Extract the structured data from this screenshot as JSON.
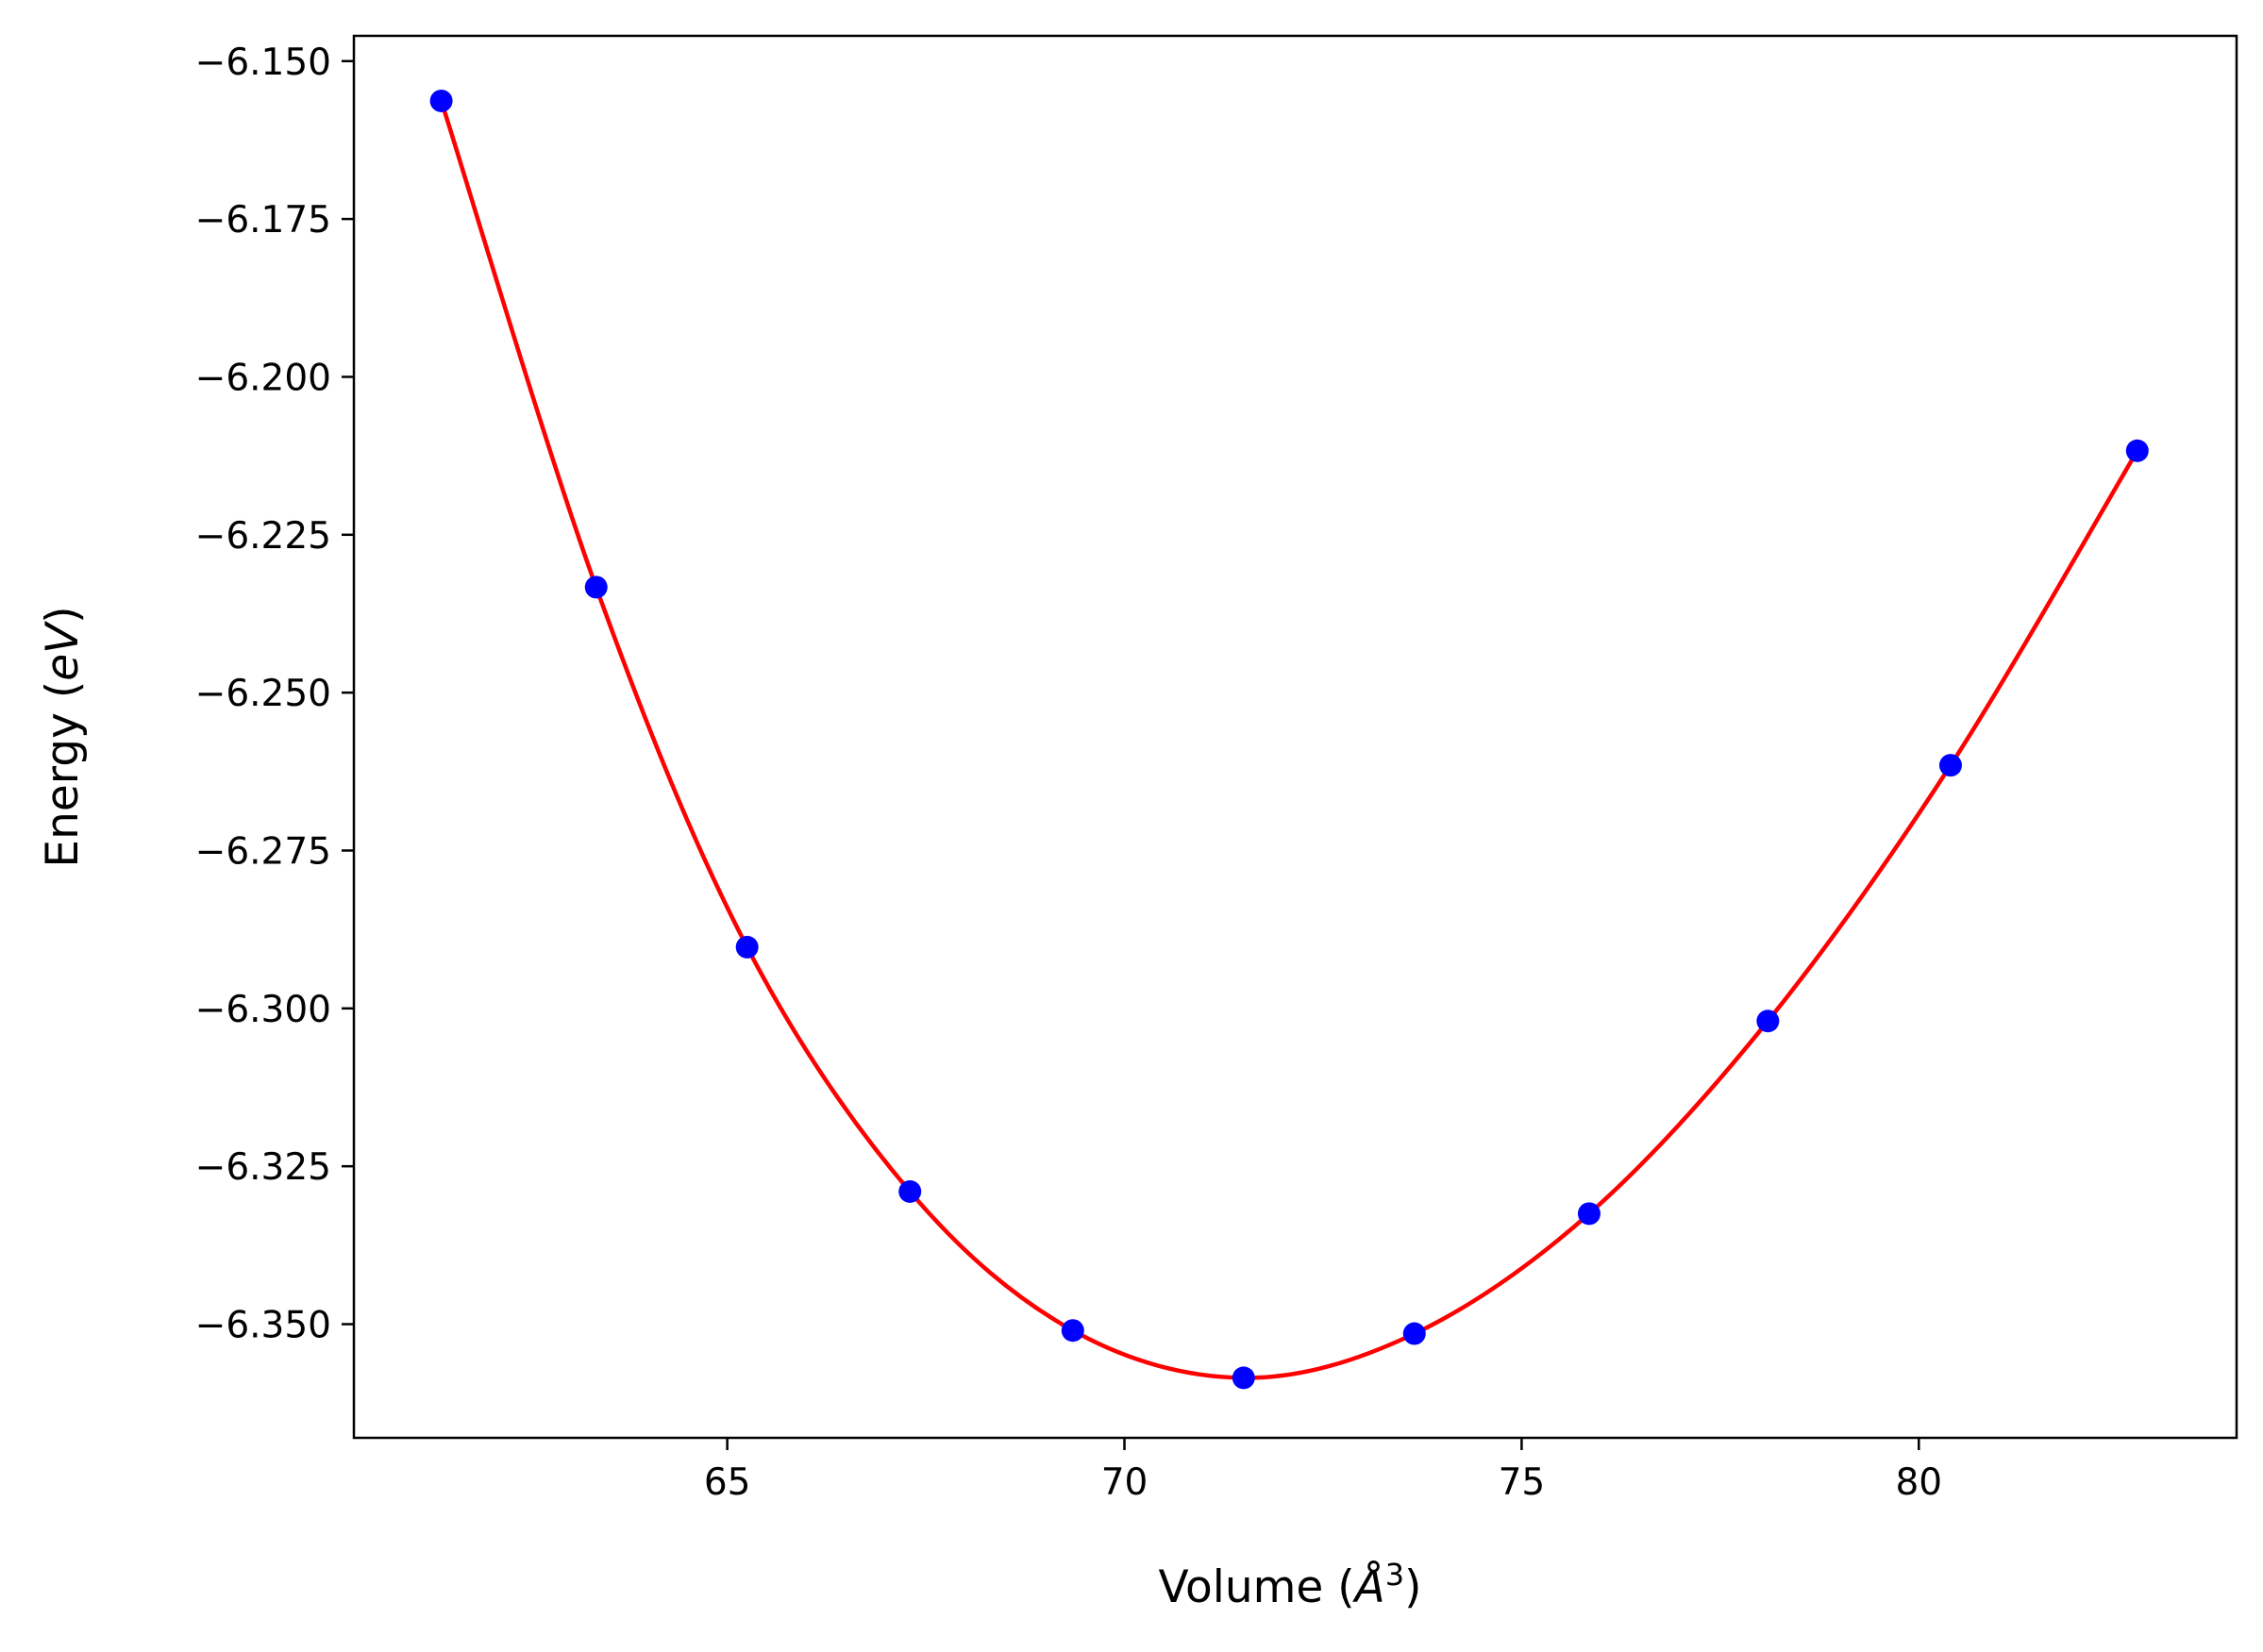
{
  "chart_data": {
    "type": "scatter",
    "title": "",
    "xlabel": {
      "prefix": "Volume (",
      "unit": "Å",
      "superscript": "3",
      "suffix": ")"
    },
    "ylabel": {
      "prefix": "Energy (",
      "unit": "eV",
      "suffix": ")"
    },
    "xlim": [
      60.3,
      84.0
    ],
    "ylim": [
      -6.368,
      -6.146
    ],
    "x_ticks": [
      65,
      70,
      75,
      80
    ],
    "x_tick_labels": [
      "65",
      "70",
      "75",
      "80"
    ],
    "y_ticks": [
      -6.15,
      -6.175,
      -6.2,
      -6.225,
      -6.25,
      -6.275,
      -6.3,
      -6.325,
      -6.35
    ],
    "y_tick_labels": [
      "−6.150",
      "−6.175",
      "−6.200",
      "−6.225",
      "−6.250",
      "−6.275",
      "−6.300",
      "−6.325",
      "−6.350"
    ],
    "grid": false,
    "legend": "none",
    "series": [
      {
        "kind": "points",
        "color": "#0000ff",
        "x": [
          61.4,
          63.35,
          65.25,
          67.3,
          69.35,
          71.5,
          73.65,
          75.85,
          78.1,
          80.4,
          82.75
        ],
        "y": [
          -6.1563,
          -6.2333,
          -6.2903,
          -6.329,
          -6.351,
          -6.3585,
          -6.3515,
          -6.3325,
          -6.302,
          -6.2615,
          -6.2117
        ]
      },
      {
        "kind": "fit-curve",
        "color": "#ff0000",
        "x": [
          61.4,
          63.35,
          65.25,
          67.3,
          69.35,
          71.5,
          73.65,
          75.85,
          78.1,
          80.4,
          82.75
        ],
        "y": [
          -6.1563,
          -6.2333,
          -6.2903,
          -6.329,
          -6.351,
          -6.3585,
          -6.3515,
          -6.3325,
          -6.302,
          -6.2615,
          -6.2117
        ]
      }
    ]
  }
}
